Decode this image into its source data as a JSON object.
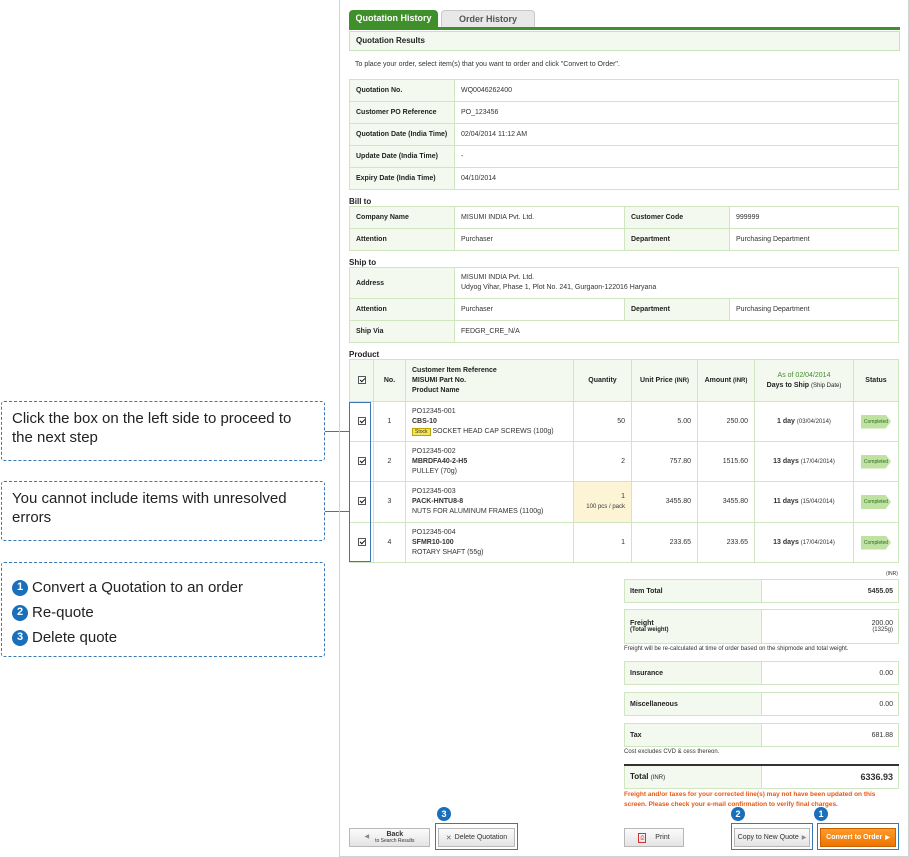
{
  "callouts": {
    "proceed": "Click the box on the left side to proceed to the next step",
    "errors": "You cannot include items with unresolved errors",
    "steps": [
      {
        "num": "1",
        "text": "Convert a Quotation to an order"
      },
      {
        "num": "2",
        "text": "Re-quote"
      },
      {
        "num": "3",
        "text": "Delete quote"
      }
    ]
  },
  "tabs": {
    "active": "Quotation History",
    "inactive": "Order History"
  },
  "section_title": "Quotation Results",
  "intro": "To place your order, select item(s) that you want to order and click \"Convert to Order\".",
  "quotation": [
    {
      "label": "Quotation No.",
      "value": "WQ0046262400"
    },
    {
      "label": "Customer PO Reference",
      "value": "PO_123456"
    },
    {
      "label": "Quotation Date (India Time)",
      "value": "02/04/2014 11:12 AM"
    },
    {
      "label": "Update Date (India Time)",
      "value": "-"
    },
    {
      "label": "Expiry Date (India Time)",
      "value": "04/10/2014"
    }
  ],
  "bill_to": {
    "title": "Bill to",
    "company_label": "Company Name",
    "company": "MISUMI INDIA Pvt. Ltd.",
    "code_label": "Customer Code",
    "code": "999999",
    "attention_label": "Attention",
    "attention": "Purchaser",
    "dept_label": "Department",
    "dept": "Purchasing Department"
  },
  "ship_to": {
    "title": "Ship to",
    "address_label": "Address",
    "address_line1": "MISUMI INDIA Pvt. Ltd.",
    "address_line2": "Udyog Vihar, Phase 1, Plot No. 241, Gurgaon-122016 Haryana",
    "attention_label": "Attention",
    "attention": "Purchaser",
    "dept_label": "Department",
    "dept": "Purchasing Department",
    "shipvia_label": "Ship Via",
    "shipvia": "FEDGR_CRE_N/A"
  },
  "product": {
    "title": "Product",
    "headers": {
      "no": "No.",
      "ref1": "Customer Item Reference",
      "ref2": "MISUMI Part No.",
      "ref3": "Product Name",
      "qty": "Quantity",
      "price": "Unit Price",
      "price_unit": "(INR)",
      "amount": "Amount",
      "amount_unit": "(INR)",
      "asof": "As of 02/04/2014",
      "days": "Days to Ship",
      "days_sub": "(Ship Date)",
      "status": "Status"
    },
    "rows": [
      {
        "no": "1",
        "ref": "PO12345-001",
        "part": "CBS-10",
        "badge": "Stock",
        "name": "SOCKET HEAD CAP SCREWS (100g)",
        "qty": "50",
        "qty_note": "",
        "price": "5.00",
        "amount": "250.00",
        "days": "1 day",
        "date": "(03/04/2014)",
        "status": "Completed"
      },
      {
        "no": "2",
        "ref": "PO12345-002",
        "part": "MBRDFA40-2-H5",
        "badge": "",
        "name": "PULLEY (70g)",
        "qty": "2",
        "qty_note": "",
        "price": "757.80",
        "amount": "1515.60",
        "days": "13 days",
        "date": "(17/04/2014)",
        "status": "Completed"
      },
      {
        "no": "3",
        "ref": "PO12345-003",
        "part": "PACK-HNTU8-8",
        "badge": "",
        "name": "NUTS FOR ALUMINUM FRAMES (1100g)",
        "qty": "1",
        "qty_note": "100 pcs / pack",
        "price": "3455.80",
        "amount": "3455.80",
        "days": "11 days",
        "date": "(15/04/2014)",
        "status": "Completed"
      },
      {
        "no": "4",
        "ref": "PO12345-004",
        "part": "SFMR10-100",
        "badge": "",
        "name": "ROTARY SHAFT (55g)",
        "qty": "1",
        "qty_note": "",
        "price": "233.65",
        "amount": "233.65",
        "days": "13 days",
        "date": "(17/04/2014)",
        "status": "Completed"
      }
    ]
  },
  "totals": {
    "currency": "(INR)",
    "item_total_label": "Item Total",
    "item_total": "5455.05",
    "freight_label": "Freight",
    "freight_sub": "(Total weight)",
    "freight": "200.00",
    "freight_weight": "(1325g)",
    "freight_note": "Freight will be re-calculated at time of order based on the shipmode and total weight.",
    "insurance_label": "Insurance",
    "insurance": "0.00",
    "misc_label": "Miscellaneous",
    "misc": "0.00",
    "tax_label": "Tax",
    "tax": "681.88",
    "tax_note": "Cost excludes CVD & cess thereon.",
    "total_label": "Total",
    "total_unit": "(INR)",
    "total": "6336.93",
    "warning": "Freight and/or taxes for your corrected line(s) may not have been updated on this screen. Please check your e-mail confirmation to verify final charges."
  },
  "buttons": {
    "back": "Back",
    "back_sub": "to Search Results",
    "delete": "Delete Quotation",
    "print": "Print",
    "copy": "Copy to New Quote",
    "convert": "Convert to Order"
  }
}
